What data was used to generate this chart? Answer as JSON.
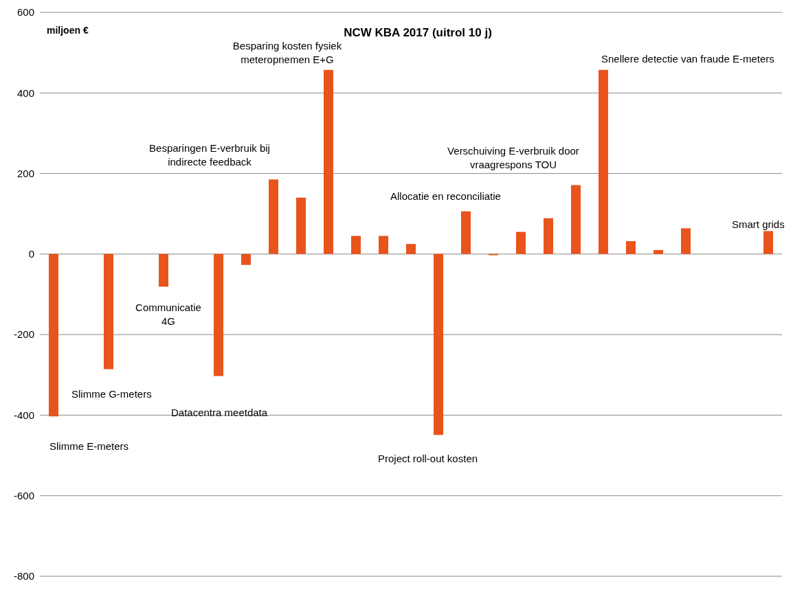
{
  "chart_data": {
    "type": "bar",
    "title": "NCW KBA 2017 (uitrol 10 j)",
    "ylabel": "miljoen €",
    "categories": [
      null,
      null,
      null,
      null,
      null,
      null,
      null,
      null,
      null,
      null,
      null,
      null,
      null,
      null,
      null,
      null,
      null,
      null,
      null,
      null,
      null,
      null,
      null,
      null,
      null,
      null,
      null
    ],
    "values": [
      -403,
      null,
      -286,
      null,
      -81,
      null,
      -303,
      -27,
      185,
      140,
      457,
      45,
      45,
      25,
      -449,
      106,
      -3,
      55,
      89,
      171,
      457,
      32,
      10,
      64,
      null,
      null,
      57
    ],
    "color": "#e8541c",
    "ylim": [
      -800,
      600
    ],
    "yticks": [
      -800,
      -600,
      -400,
      -200,
      0,
      200,
      400,
      600
    ],
    "grid": "y",
    "tick_labels": "y",
    "annotations": [
      "Slimme E-meters",
      "Slimme G-meters",
      "Communicatie 4G",
      "Datacentra meetdata",
      "Besparingen E-verbruik bij indirecte feedback",
      "Besparing kosten fysiek meteropnemen E+G",
      "Allocatie en reconciliatie",
      "Project roll-out kosten",
      "Verschuiving E-verbruik door vraagrespons TOU",
      "Snellere detectie van fraude E-meters",
      "Smart grids"
    ]
  }
}
